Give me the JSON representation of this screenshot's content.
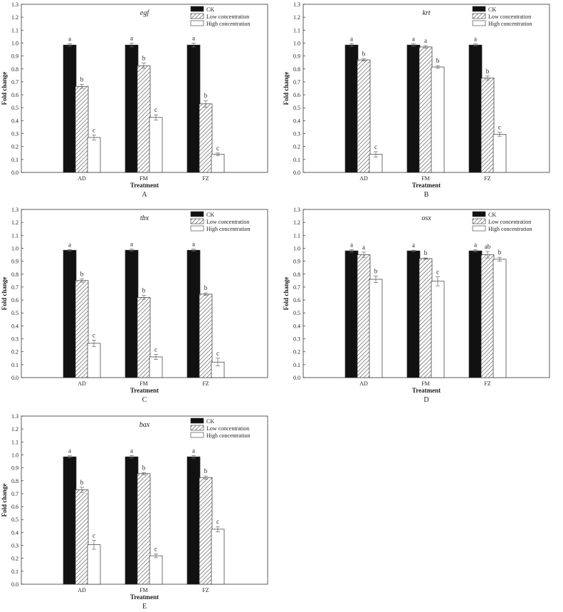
{
  "colors": {
    "ck": "#111111",
    "low_hatch": "#555555",
    "high": "#ffffff",
    "axis": "#333333"
  },
  "legend_labels": [
    "CK",
    "Low concentration",
    "High concentration"
  ],
  "chart_data": [
    {
      "panel_label": "A",
      "type": "bar",
      "title": "egf",
      "xlabel": "Treatment",
      "ylabel": "Fold change",
      "categories": [
        "AD",
        "FM",
        "FZ"
      ],
      "ylim": [
        0,
        1.3
      ],
      "yticks": [
        "0.0",
        "0.1",
        "0.2",
        "0.3",
        "0.4",
        "0.5",
        "0.6",
        "0.7",
        "0.8",
        "0.9",
        "1.0",
        "1.1",
        "1.2",
        "1.3"
      ],
      "series": [
        {
          "name": "CK",
          "values": [
            0.985,
            0.985,
            0.985
          ],
          "errors": [
            0.01,
            0.015,
            0.015
          ],
          "letters": [
            "a",
            "a",
            "a"
          ]
        },
        {
          "name": "Low concentration",
          "values": [
            0.665,
            0.825,
            0.53
          ],
          "errors": [
            0.015,
            0.02,
            0.025
          ],
          "letters": [
            "b",
            "b",
            "b"
          ]
        },
        {
          "name": "High concentration",
          "values": [
            0.27,
            0.425,
            0.14
          ],
          "errors": [
            0.02,
            0.02,
            0.01
          ],
          "letters": [
            "c",
            "c",
            "c"
          ]
        }
      ]
    },
    {
      "panel_label": "B",
      "type": "bar",
      "title": "krt",
      "xlabel": "Treatment",
      "ylabel": "Fold change",
      "categories": [
        "AD",
        "FM",
        "FZ"
      ],
      "ylim": [
        0,
        1.3
      ],
      "yticks": [
        "0.0",
        "0.1",
        "0.2",
        "0.3",
        "0.4",
        "0.5",
        "0.6",
        "0.7",
        "0.8",
        "0.9",
        "1.0",
        "1.1",
        "1.2",
        "1.3"
      ],
      "series": [
        {
          "name": "CK",
          "values": [
            0.985,
            0.985,
            0.985
          ],
          "errors": [
            0.01,
            0.01,
            0.008
          ],
          "letters": [
            "a",
            "a",
            "a"
          ]
        },
        {
          "name": "Low concentration",
          "values": [
            0.87,
            0.97,
            0.73
          ],
          "errors": [
            0.008,
            0.01,
            0.015
          ],
          "letters": [
            "b",
            "a",
            "b"
          ]
        },
        {
          "name": "High concentration",
          "values": [
            0.14,
            0.815,
            0.295
          ],
          "errors": [
            0.02,
            0.01,
            0.015
          ],
          "letters": [
            "c",
            "b",
            "c"
          ]
        }
      ]
    },
    {
      "panel_label": "C",
      "type": "bar",
      "title": "tbx",
      "xlabel": "Treatment",
      "ylabel": "Fold change",
      "categories": [
        "AD",
        "FM",
        "FZ"
      ],
      "ylim": [
        0,
        1.3
      ],
      "yticks": [
        "0.0",
        "0.1",
        "0.2",
        "0.3",
        "0.4",
        "0.5",
        "0.6",
        "0.7",
        "0.8",
        "0.9",
        "1.0",
        "1.1",
        "1.2",
        "1.3"
      ],
      "series": [
        {
          "name": "CK",
          "values": [
            0.985,
            0.985,
            0.985
          ],
          "errors": [
            0.005,
            0.008,
            0.008
          ],
          "letters": [
            "a",
            "a",
            "a"
          ]
        },
        {
          "name": "Low concentration",
          "values": [
            0.75,
            0.62,
            0.645
          ],
          "errors": [
            0.012,
            0.015,
            0.01
          ],
          "letters": [
            "b",
            "b",
            "b"
          ]
        },
        {
          "name": "High concentration",
          "values": [
            0.265,
            0.16,
            0.12
          ],
          "errors": [
            0.025,
            0.02,
            0.03
          ],
          "letters": [
            "c",
            "c",
            "c"
          ]
        }
      ]
    },
    {
      "panel_label": "D",
      "type": "bar",
      "title": "osx",
      "xlabel": "Treatment",
      "ylabel": "Fold change",
      "categories": [
        "AD",
        "FM",
        "FZ"
      ],
      "ylim": [
        0,
        1.3
      ],
      "yticks": [
        "0.0",
        "0.1",
        "0.2",
        "0.3",
        "0.4",
        "0.5",
        "0.6",
        "0.7",
        "0.8",
        "0.9",
        "1.0",
        "1.1",
        "1.2",
        "1.3"
      ],
      "series": [
        {
          "name": "CK",
          "values": [
            0.98,
            0.98,
            0.98
          ],
          "errors": [
            0.01,
            0.005,
            0.008
          ],
          "letters": [
            "a",
            "a",
            "a"
          ]
        },
        {
          "name": "Low concentration",
          "values": [
            0.95,
            0.92,
            0.95
          ],
          "errors": [
            0.02,
            0.005,
            0.025
          ],
          "letters": [
            "a",
            "b",
            "ab"
          ]
        },
        {
          "name": "High concentration",
          "values": [
            0.76,
            0.745,
            0.915
          ],
          "errors": [
            0.025,
            0.035,
            0.015
          ],
          "letters": [
            "b",
            "c",
            "b"
          ]
        }
      ]
    },
    {
      "panel_label": "E",
      "type": "bar",
      "title": "bax",
      "xlabel": "Treatment",
      "ylabel": "Fold change",
      "categories": [
        "AD",
        "FM",
        "FZ"
      ],
      "ylim": [
        0,
        1.3
      ],
      "yticks": [
        "0.0",
        "0.1",
        "0.2",
        "0.3",
        "0.4",
        "0.5",
        "0.6",
        "0.7",
        "0.8",
        "0.9",
        "1.0",
        "1.1",
        "1.2",
        "1.3"
      ],
      "series": [
        {
          "name": "CK",
          "values": [
            0.985,
            0.985,
            0.985
          ],
          "errors": [
            0.008,
            0.01,
            0.01
          ],
          "letters": [
            "a",
            "a",
            "a"
          ]
        },
        {
          "name": "Low concentration",
          "values": [
            0.73,
            0.855,
            0.825
          ],
          "errors": [
            0.02,
            0.008,
            0.012
          ],
          "letters": [
            "b",
            "b",
            "b"
          ]
        },
        {
          "name": "High concentration",
          "values": [
            0.305,
            0.22,
            0.425
          ],
          "errors": [
            0.035,
            0.015,
            0.02
          ],
          "letters": [
            "c",
            "c",
            "c"
          ]
        }
      ]
    }
  ]
}
